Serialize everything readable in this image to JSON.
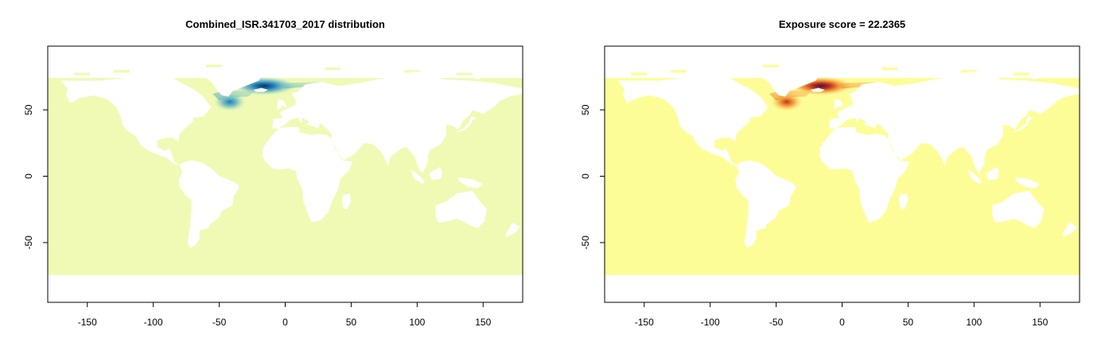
{
  "panels": [
    {
      "title": "Combined_ISR.341703_2017 distribution",
      "colormap": "distribution",
      "ocean_color": "#f0fab4",
      "hotspot_colors": [
        "#b5e0b8",
        "#5ab0c8",
        "#1f78b4",
        "#08306b"
      ],
      "x_ticks": [
        "-150",
        "-100",
        "-50",
        "0",
        "50",
        "100",
        "150"
      ],
      "y_ticks": [
        "50",
        "0",
        "-50"
      ]
    },
    {
      "title": "Exposure score = 22.2365",
      "colormap": "exposure",
      "ocean_color": "#fdfd98",
      "hotspot_colors": [
        "#fdd06a",
        "#f08a2a",
        "#c0311c",
        "#3b1450"
      ],
      "x_ticks": [
        "-150",
        "-100",
        "-50",
        "0",
        "50",
        "100",
        "150"
      ],
      "y_ticks": [
        "50",
        "0",
        "-50"
      ]
    }
  ],
  "chart_data": [
    {
      "type": "heatmap",
      "title": "Combined_ISR.341703_2017 distribution",
      "xlim": [
        -180,
        180
      ],
      "ylim": [
        -95,
        98
      ],
      "x_ticks": [
        -150,
        -100,
        -50,
        0,
        50,
        100,
        150
      ],
      "y_ticks": [
        50,
        0,
        -50
      ],
      "hotspots": [
        {
          "lon": -16,
          "lat": 68,
          "intensity": 1.0
        },
        {
          "lon": -42,
          "lat": 56,
          "intensity": 0.6
        }
      ]
    },
    {
      "type": "heatmap",
      "title": "Exposure score = 22.2365",
      "xlim": [
        -180,
        180
      ],
      "ylim": [
        -95,
        98
      ],
      "x_ticks": [
        -150,
        -100,
        -50,
        0,
        50,
        100,
        150
      ],
      "y_ticks": [
        50,
        0,
        -50
      ],
      "hotspots": [
        {
          "lon": -16,
          "lat": 68,
          "intensity": 1.0
        },
        {
          "lon": -42,
          "lat": 56,
          "intensity": 0.7
        }
      ]
    }
  ]
}
